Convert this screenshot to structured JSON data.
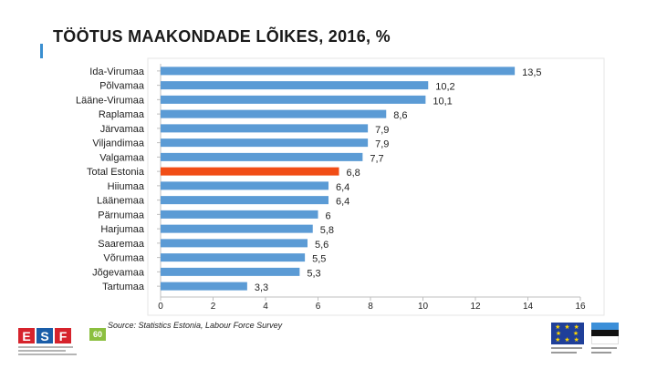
{
  "slide": {
    "title": "TÖÖTUS MAAKONDADE LÕIKES, 2016, %",
    "source": "Source: Statistics Estonia, Labour Force Survey",
    "accent_color": "#3a8fd0"
  },
  "logos": {
    "esf_letters": [
      "E",
      "S",
      "F"
    ],
    "esf_colors": [
      "#d6232c",
      "#1a5da8",
      "#d6232c"
    ],
    "esf_badge": "60",
    "eu_icon": "eu-flag-icon",
    "ee_icon": "estonia-flag-icon"
  },
  "chart_data": {
    "type": "bar",
    "orientation": "horizontal",
    "title": "TÖÖTUS MAAKONDADE LÕIKES, 2016, %",
    "xlabel": "",
    "ylabel": "",
    "xlim": [
      0,
      16
    ],
    "xticks": [
      0,
      2,
      4,
      6,
      8,
      10,
      12,
      14,
      16
    ],
    "grid": false,
    "legend": "none",
    "colors": {
      "default": "#5b9bd5",
      "highlight": "#f14d16",
      "axis": "#bfbfbf",
      "label": "#222222"
    },
    "highlight_category": "Total Estonia",
    "categories": [
      "Ida-Virumaa",
      "Põlvamaa",
      "Lääne-Virumaa",
      "Raplamaa",
      "Järvamaa",
      "Viljandimaa",
      "Valgamaa",
      "Total Estonia",
      "Hiiumaa",
      "Läänemaa",
      "Pärnumaa",
      "Harjumaa",
      "Saaremaa",
      "Võrumaa",
      "Jõgevamaa",
      "Tartumaa"
    ],
    "values": [
      13.5,
      10.2,
      10.1,
      8.6,
      7.9,
      7.9,
      7.7,
      6.8,
      6.4,
      6.4,
      6.0,
      5.8,
      5.6,
      5.5,
      5.3,
      3.3
    ],
    "value_labels": [
      "13,5",
      "10,2",
      "10,1",
      "8,6",
      "7,9",
      "7,9",
      "7,7",
      "6,8",
      "6,4",
      "6,4",
      "6",
      "5,8",
      "5,6",
      "5,5",
      "5,3",
      "3,3"
    ]
  }
}
